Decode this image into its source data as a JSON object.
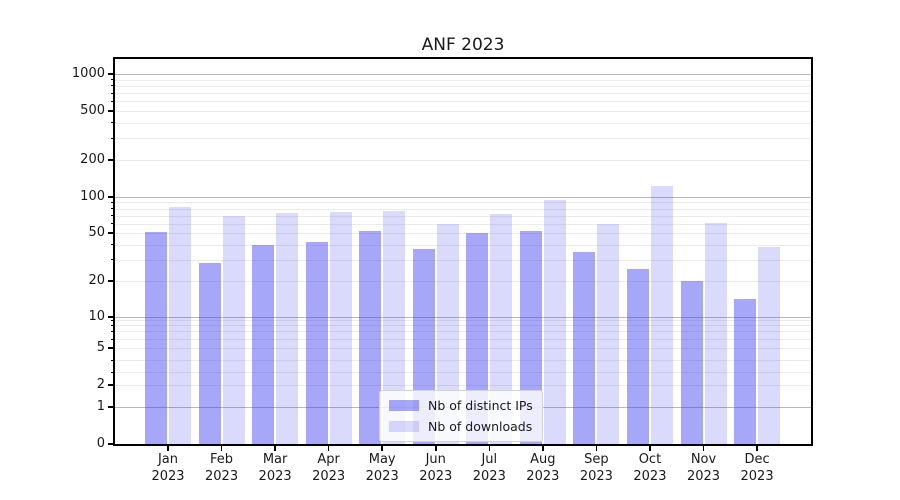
{
  "title": "ANF 2023",
  "chart_data": {
    "type": "bar",
    "title": "ANF 2023",
    "categories": [
      "Jan 2023",
      "Feb 2023",
      "Mar 2023",
      "Apr 2023",
      "May 2023",
      "Jun 2023",
      "Jul 2023",
      "Aug 2023",
      "Sep 2023",
      "Oct 2023",
      "Nov 2023",
      "Dec 2023"
    ],
    "series": [
      {
        "name": "Nb of distinct IPs",
        "values": [
          51,
          28,
          40,
          42,
          52,
          37,
          50,
          52,
          35,
          25,
          20,
          14
        ],
        "color": "rgba(60,60,245,0.45)"
      },
      {
        "name": "Nb of downloads",
        "values": [
          83,
          70,
          74,
          75,
          77,
          59,
          72,
          95,
          59,
          122,
          61,
          38
        ],
        "color": "rgba(60,60,245,0.19)"
      }
    ],
    "yscale": "symlog",
    "ylim": [
      0,
      1400
    ],
    "ytick_values": [
      1000,
      500,
      200,
      100,
      50,
      20,
      10,
      5,
      2,
      1,
      0
    ],
    "ytick_labels": [
      "1000",
      "500",
      "200",
      "100",
      "50",
      "20",
      "10",
      "5",
      "2",
      "1",
      "0"
    ],
    "grid": "on",
    "legend_position": "lower center"
  },
  "legend": {
    "items": [
      {
        "label": "Nb of distinct IPs",
        "swatch": "rgba(60,60,245,0.45)"
      },
      {
        "label": "Nb of downloads",
        "swatch": "rgba(60,60,245,0.19)"
      }
    ]
  },
  "colors": {
    "bar_dark": "#a8a8f9",
    "bar_light": "#dbdbfc",
    "grid_major": "#b8b8b8",
    "grid_minor": "#ebebeb",
    "spine": "#000000",
    "text": "#1a1a1a",
    "background": "#ffffff"
  }
}
